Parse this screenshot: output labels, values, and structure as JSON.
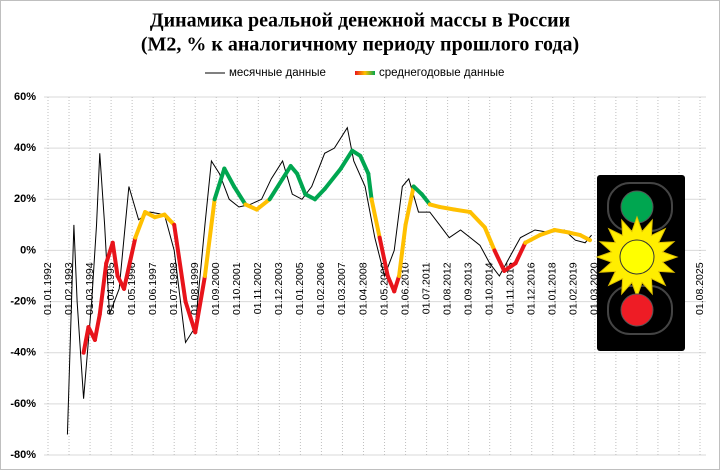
{
  "chart_data": {
    "type": "line",
    "title": [
      "Динамика реальной денежной массы в России",
      "(М2, % к аналогичному периоду прошлого года)"
    ],
    "xlim": [
      "01.01.1992",
      "01.08.2025"
    ],
    "xticks": [
      "01.01.1992",
      "01.02.1993",
      "01.03.1994",
      "01.04.1995",
      "01.05.1996",
      "01.06.1997",
      "01.07.1998",
      "01.08.1999",
      "01.09.2000",
      "01.10.2001",
      "01.11.2002",
      "01.12.2003",
      "01.01.2005",
      "01.02.2006",
      "01.03.2007",
      "01.04.2008",
      "01.05.2009",
      "01.06.2010",
      "01.07.2011",
      "01.08.2012",
      "01.09.2013",
      "01.10.2014",
      "01.11.2015",
      "01.12.2016",
      "01.01.2018",
      "01.02.2019",
      "01.03.2020",
      "01.04.2021",
      "01.05.2022",
      "01.06.2023",
      "01.07.2024",
      "01.08.2025"
    ],
    "ylim": [
      -80,
      60
    ],
    "yticks": [
      {
        "value": -80,
        "label": "-80%"
      },
      {
        "value": -60,
        "label": "-60%"
      },
      {
        "value": -40,
        "label": "-40%"
      },
      {
        "value": -20,
        "label": "-20%"
      },
      {
        "value": 0,
        "label": "0%"
      },
      {
        "value": 20,
        "label": "20%"
      },
      {
        "value": 40,
        "label": "40%"
      },
      {
        "value": 60,
        "label": "60%"
      }
    ],
    "grid": true,
    "legend": "top",
    "series": [
      {
        "name": "месячные данные",
        "color": "#000000",
        "x": [
          "01.01.1993",
          "01.05.1993",
          "01.07.1993",
          "01.11.1993",
          "01.04.1994",
          "01.07.1994",
          "01.09.1994",
          "01.12.1994",
          "01.03.1995",
          "01.09.1995",
          "01.03.1996",
          "01.09.1996",
          "01.04.1997",
          "01.01.1998",
          "01.07.1998",
          "01.02.1999",
          "01.08.1999",
          "01.02.2000",
          "01.06.2000",
          "01.11.2000",
          "01.05.2001",
          "01.11.2001",
          "01.06.2002",
          "01.01.2003",
          "01.07.2003",
          "01.02.2004",
          "01.08.2004",
          "01.02.2005",
          "01.08.2005",
          "01.04.2006",
          "01.10.2006",
          "01.06.2007",
          "01.10.2007",
          "01.05.2008",
          "01.11.2008",
          "01.05.2009",
          "01.11.2009",
          "01.04.2010",
          "01.08.2010",
          "01.02.2011",
          "01.09.2011",
          "01.03.2012",
          "01.09.2012",
          "01.04.2013",
          "01.10.2013",
          "01.04.2014",
          "01.10.2014",
          "01.04.2015",
          "01.10.2015",
          "01.05.2016",
          "01.02.2017",
          "01.11.2017",
          "01.08.2018",
          "01.03.2019",
          "01.09.2019",
          "01.01.2020"
        ],
        "values": [
          -72,
          10,
          -20,
          -58,
          -20,
          10,
          38,
          10,
          -25,
          -15,
          25,
          12,
          15,
          14,
          0,
          -36,
          -30,
          10,
          35,
          30,
          20,
          17,
          18,
          20,
          28,
          35,
          22,
          20,
          25,
          38,
          40,
          48,
          35,
          25,
          5,
          -10,
          0,
          25,
          28,
          15,
          15,
          10,
          5,
          8,
          5,
          2,
          -5,
          -10,
          -3,
          5,
          8,
          7,
          8,
          4,
          3,
          6
        ]
      },
      {
        "name": "среднегодовые данные",
        "colors": [
          "#e8141b",
          "#ffc000",
          "#00a650"
        ],
        "color_thresholds": [
          0,
          20
        ],
        "x": [
          "01.11.1993",
          "01.02.1994",
          "01.06.1994",
          "01.09.1994",
          "01.01.1995",
          "01.05.1995",
          "01.08.1995",
          "01.12.1995",
          "01.07.1996",
          "01.01.1997",
          "01.07.1997",
          "01.01.1998",
          "01.07.1998",
          "01.02.1999",
          "01.08.1999",
          "01.02.2000",
          "01.08.2000",
          "01.02.2001",
          "01.08.2001",
          "01.03.2002",
          "01.10.2002",
          "01.06.2003",
          "01.02.2004",
          "01.07.2004",
          "01.11.2004",
          "01.04.2005",
          "01.10.2005",
          "01.04.2006",
          "01.02.2007",
          "01.09.2007",
          "01.02.2008",
          "01.07.2008",
          "01.09.2008",
          "01.02.2009",
          "01.07.2009",
          "01.11.2009",
          "01.02.2010",
          "01.06.2010",
          "01.11.2010",
          "01.04.2011",
          "01.09.2011",
          "01.03.2012",
          "01.12.2012",
          "01.10.2013",
          "01.07.2014",
          "01.01.2015",
          "01.07.2015",
          "01.02.2016",
          "01.08.2016",
          "01.05.2017",
          "01.02.2018",
          "01.11.2018",
          "01.06.2019",
          "01.12.2019"
        ],
        "values": [
          -40,
          -30,
          -35,
          -25,
          -5,
          3,
          -10,
          -15,
          5,
          15,
          13,
          14,
          10,
          -20,
          -32,
          -10,
          20,
          32,
          25,
          18,
          16,
          20,
          28,
          33,
          30,
          22,
          20,
          24,
          32,
          39,
          37,
          30,
          20,
          5,
          -10,
          -16,
          -10,
          10,
          25,
          22,
          18,
          17,
          16,
          15,
          9,
          0,
          -8,
          -5,
          3,
          6,
          8,
          7,
          6,
          4
        ]
      }
    ]
  }
}
